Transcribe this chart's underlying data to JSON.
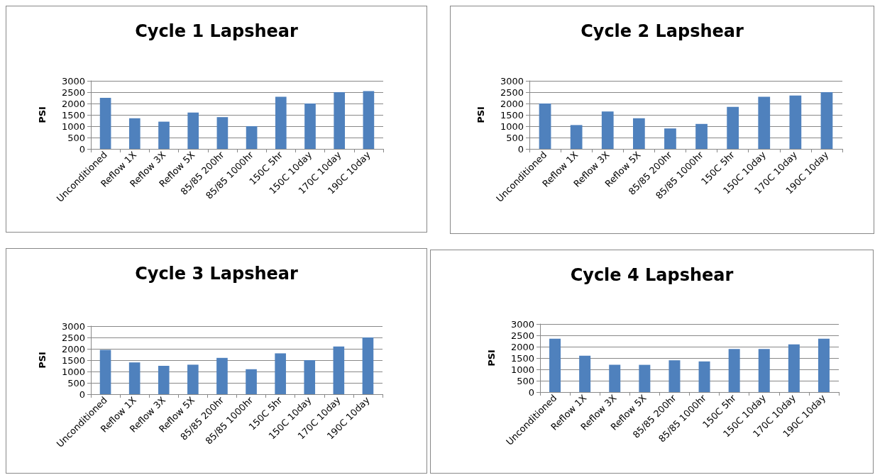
{
  "chart_data": [
    {
      "type": "bar",
      "title": "Cycle 1 Lapshear",
      "ylabel": "PSI",
      "categories": [
        "Unconditioned",
        "Reflow 1X",
        "Reflow 3X",
        "Reflow 5X",
        "85/85 200hr",
        "85/85 1000hr",
        "150C 5hr",
        "150C 10day",
        "170C 10day",
        "190C 10day"
      ],
      "values": [
        2250,
        1350,
        1200,
        1600,
        1400,
        1000,
        2300,
        2000,
        2500,
        2550
      ],
      "color": "#4f81bd",
      "ylim": [
        0,
        3000
      ],
      "yticks": [
        0,
        500,
        1000,
        1500,
        2000,
        2500,
        3000
      ],
      "grid": "y"
    },
    {
      "type": "bar",
      "title": "Cycle 2 Lapshear",
      "ylabel": "PSI",
      "categories": [
        "Unconditioned",
        "Reflow 1X",
        "Reflow 3X",
        "Reflow 5X",
        "85/85 200hr",
        "85/85 1000hr",
        "150C 5hr",
        "150C 10day",
        "170C 10day",
        "190C 10day"
      ],
      "values": [
        2000,
        1050,
        1650,
        1350,
        900,
        1100,
        1850,
        2300,
        2350,
        2500
      ],
      "color": "#4f81bd",
      "ylim": [
        0,
        3000
      ],
      "yticks": [
        0,
        500,
        1000,
        1500,
        2000,
        2500,
        3000
      ],
      "grid": "y"
    },
    {
      "type": "bar",
      "title": "Cycle 3 Lapshear",
      "ylabel": "PSI",
      "categories": [
        "Unconditioned",
        "Reflow 1X",
        "Reflow 3X",
        "Reflow 5X",
        "85/85 200hr",
        "85/85 1000hr",
        "150C 5hr",
        "150C 10day",
        "170C 10day",
        "190C 10day"
      ],
      "values": [
        1950,
        1400,
        1250,
        1300,
        1600,
        1100,
        1800,
        1500,
        2100,
        2500
      ],
      "color": "#4f81bd",
      "ylim": [
        0,
        3000
      ],
      "yticks": [
        0,
        500,
        1000,
        1500,
        2000,
        2500,
        3000
      ],
      "grid": "y"
    },
    {
      "type": "bar",
      "title": "Cycle 4 Lapshear",
      "ylabel": "PSI",
      "categories": [
        "Unconditioned",
        "Reflow 1X",
        "Reflow 3X",
        "Reflow 5X",
        "85/85 200hr",
        "85/85 1000hr",
        "150C 5hr",
        "150C 10day",
        "170C 10day",
        "190C 10day"
      ],
      "values": [
        2350,
        1600,
        1200,
        1200,
        1400,
        1350,
        1900,
        1900,
        2100,
        2350
      ],
      "color": "#4f81bd",
      "ylim": [
        0,
        3000
      ],
      "yticks": [
        0,
        500,
        1000,
        1500,
        2000,
        2500,
        3000
      ],
      "grid": "y"
    }
  ]
}
